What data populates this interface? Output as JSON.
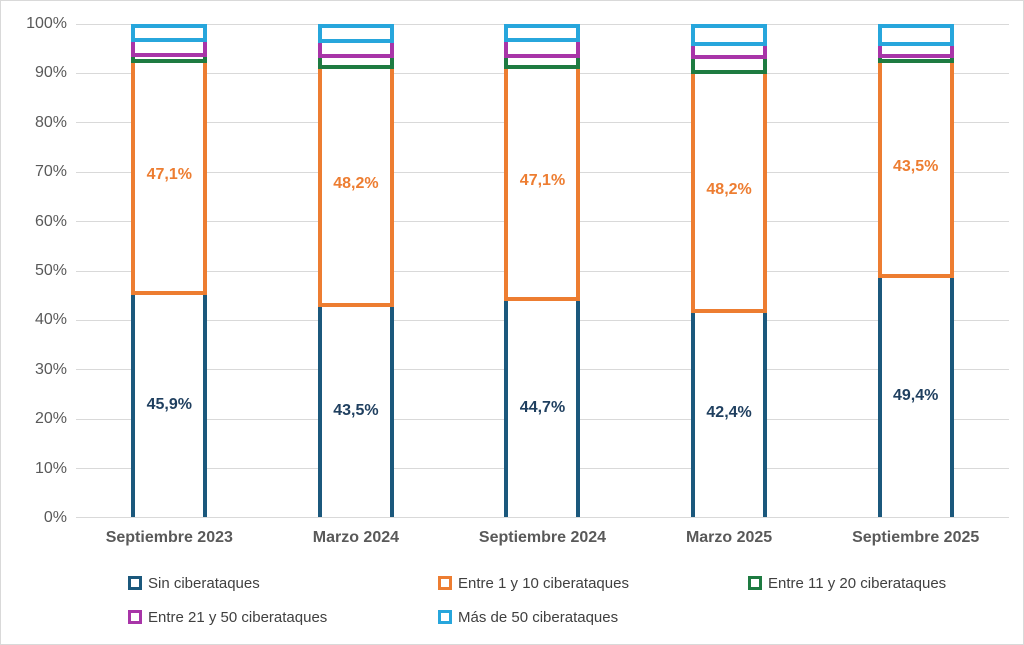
{
  "chart_data": {
    "type": "bar",
    "subtype": "stacked-100-percent",
    "title": "",
    "xlabel": "",
    "ylabel": "",
    "grid": true,
    "legend_position": "bottom",
    "categories": [
      "Septiembre 2023",
      "Marzo 2024",
      "Septiembre 2024",
      "Marzo 2025",
      "Septiembre 2025"
    ],
    "series": [
      {
        "key": "sin-ciberataques",
        "name": "Sin ciberataques",
        "color": "#1B587C",
        "label_color": "#1F3F5F",
        "values": [
          45.9,
          43.5,
          44.7,
          42.4,
          49.4
        ],
        "labels": [
          "45,9%",
          "43,5%",
          "44,7%",
          "42,4%",
          "49,4%"
        ]
      },
      {
        "key": "entre-1-y-10-ciberataques",
        "name": "Entre 1 y 10 ciberataques",
        "color": "#ED7D31",
        "label_color": "#ED7D31",
        "values": [
          47.1,
          48.2,
          47.1,
          48.2,
          43.5
        ],
        "labels": [
          "47,1%",
          "48,2%",
          "47,1%",
          "48,2%",
          "43,5%"
        ]
      },
      {
        "key": "entre-11-y-20-ciberataques",
        "name": "Entre 11 y 20 ciberataques",
        "color": "#1E7B41",
        "values": [
          1.1,
          2.2,
          2.1,
          3.2,
          1.1
        ]
      },
      {
        "key": "entre-21-y-50-ciberataques",
        "name": "Entre 21 y 50 ciberataques",
        "color": "#A835A8",
        "values": [
          3.0,
          3.1,
          3.3,
          2.5,
          2.4
        ]
      },
      {
        "key": "mas-de-50-ciberataques",
        "name": "Más de 50 ciberataques",
        "color": "#27A6DC",
        "values": [
          2.9,
          3.0,
          2.8,
          3.7,
          3.6
        ]
      }
    ],
    "y_axis": {
      "min": 0,
      "max": 100,
      "ticks": [
        "0%",
        "10%",
        "20%",
        "30%",
        "40%",
        "50%",
        "60%",
        "70%",
        "80%",
        "90%",
        "100%"
      ]
    },
    "style_colors": {
      "gridline": "#D9D9D9",
      "axis_text": "#595959",
      "legend_text": "#404040",
      "frame_border": "#D9D9D9"
    }
  }
}
